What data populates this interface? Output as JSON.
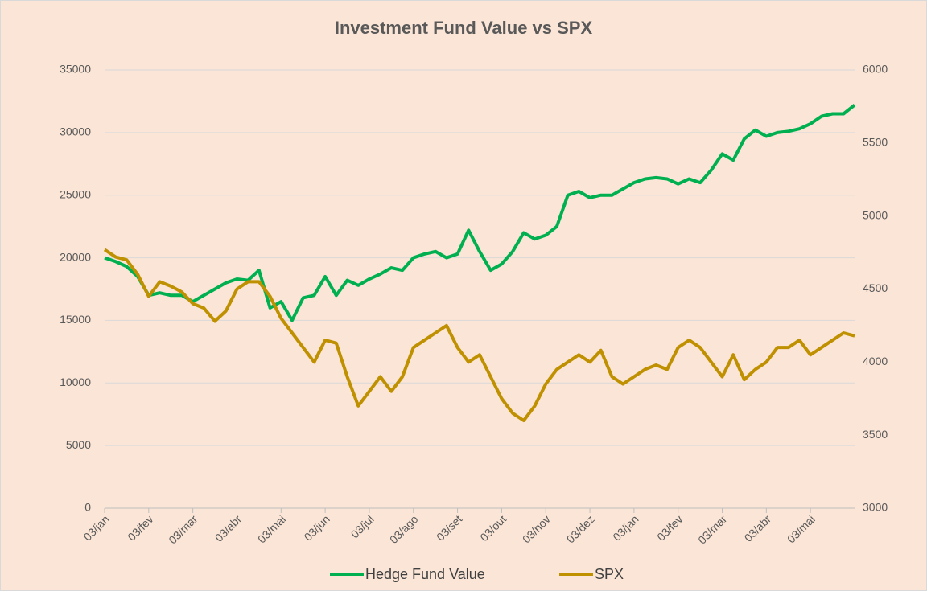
{
  "chart_data": {
    "type": "line",
    "title": "Investment Fund Value vs SPX",
    "categories": [
      "03/jan",
      null,
      null,
      null,
      "03/fev",
      null,
      null,
      null,
      "03/mar",
      null,
      null,
      null,
      "03/abr",
      null,
      null,
      null,
      "03/mai",
      null,
      null,
      null,
      "03/jun",
      null,
      null,
      null,
      "03/jul",
      null,
      null,
      null,
      "03/ago",
      null,
      null,
      null,
      "03/set",
      null,
      null,
      null,
      "03/out",
      null,
      null,
      null,
      "03/nov",
      null,
      null,
      null,
      "03/dez",
      null,
      null,
      null,
      "03/jan",
      null,
      null,
      null,
      "03/fev",
      null,
      null,
      null,
      "03/mar",
      null,
      null,
      null,
      "03/abr",
      null,
      null,
      null,
      "03/mai",
      null,
      null,
      null,
      null
    ],
    "series": [
      {
        "name": "Hedge Fund Value",
        "color": "#00b050",
        "values": [
          20000,
          19700,
          19300,
          18500,
          17000,
          17200,
          17000,
          17000,
          16500,
          17000,
          17500,
          18000,
          18300,
          18200,
          19000,
          16000,
          16500,
          15000,
          16800,
          17000,
          18500,
          17000,
          18200,
          17800,
          18300,
          18700,
          19200,
          19000,
          20000,
          20300,
          20500,
          20000,
          20300,
          22200,
          20500,
          19000,
          19500,
          20500,
          22000,
          21500,
          21800,
          22500,
          25000,
          25300,
          24800,
          25000,
          25000,
          25500,
          26000,
          26300,
          26400,
          26300,
          25900,
          26300,
          26000,
          27000,
          28300,
          27800,
          29500,
          30200,
          29700,
          30000,
          30100,
          30300,
          30700,
          31300,
          31500,
          31500,
          32200
        ]
      },
      {
        "name": "SPX",
        "color": "#bf9000",
        "axis": "y2",
        "values": [
          4770,
          4720,
          4700,
          4600,
          4450,
          4550,
          4520,
          4480,
          4400,
          4370,
          4280,
          4350,
          4500,
          4550,
          4550,
          4450,
          4300,
          4200,
          4100,
          4000,
          4150,
          4130,
          3900,
          3700,
          3800,
          3900,
          3800,
          3900,
          4100,
          4150,
          4200,
          4250,
          4100,
          4000,
          4050,
          3900,
          3750,
          3650,
          3600,
          3700,
          3850,
          3950,
          4000,
          4050,
          4000,
          4080,
          3900,
          3850,
          3900,
          3950,
          3980,
          3950,
          4100,
          4150,
          4100,
          4000,
          3900,
          4050,
          3880,
          3950,
          4000,
          4100,
          4100,
          4150,
          4050,
          4100,
          4150,
          4200,
          4180
        ]
      }
    ],
    "ylim": [
      0,
      35000
    ],
    "yticks": [
      0,
      5000,
      10000,
      15000,
      20000,
      25000,
      30000,
      35000
    ],
    "y2lim": [
      3000,
      6000
    ],
    "y2ticks": [
      3000,
      3500,
      4000,
      4500,
      5000,
      5500,
      6000
    ],
    "grid": true,
    "legend": "bottom"
  }
}
